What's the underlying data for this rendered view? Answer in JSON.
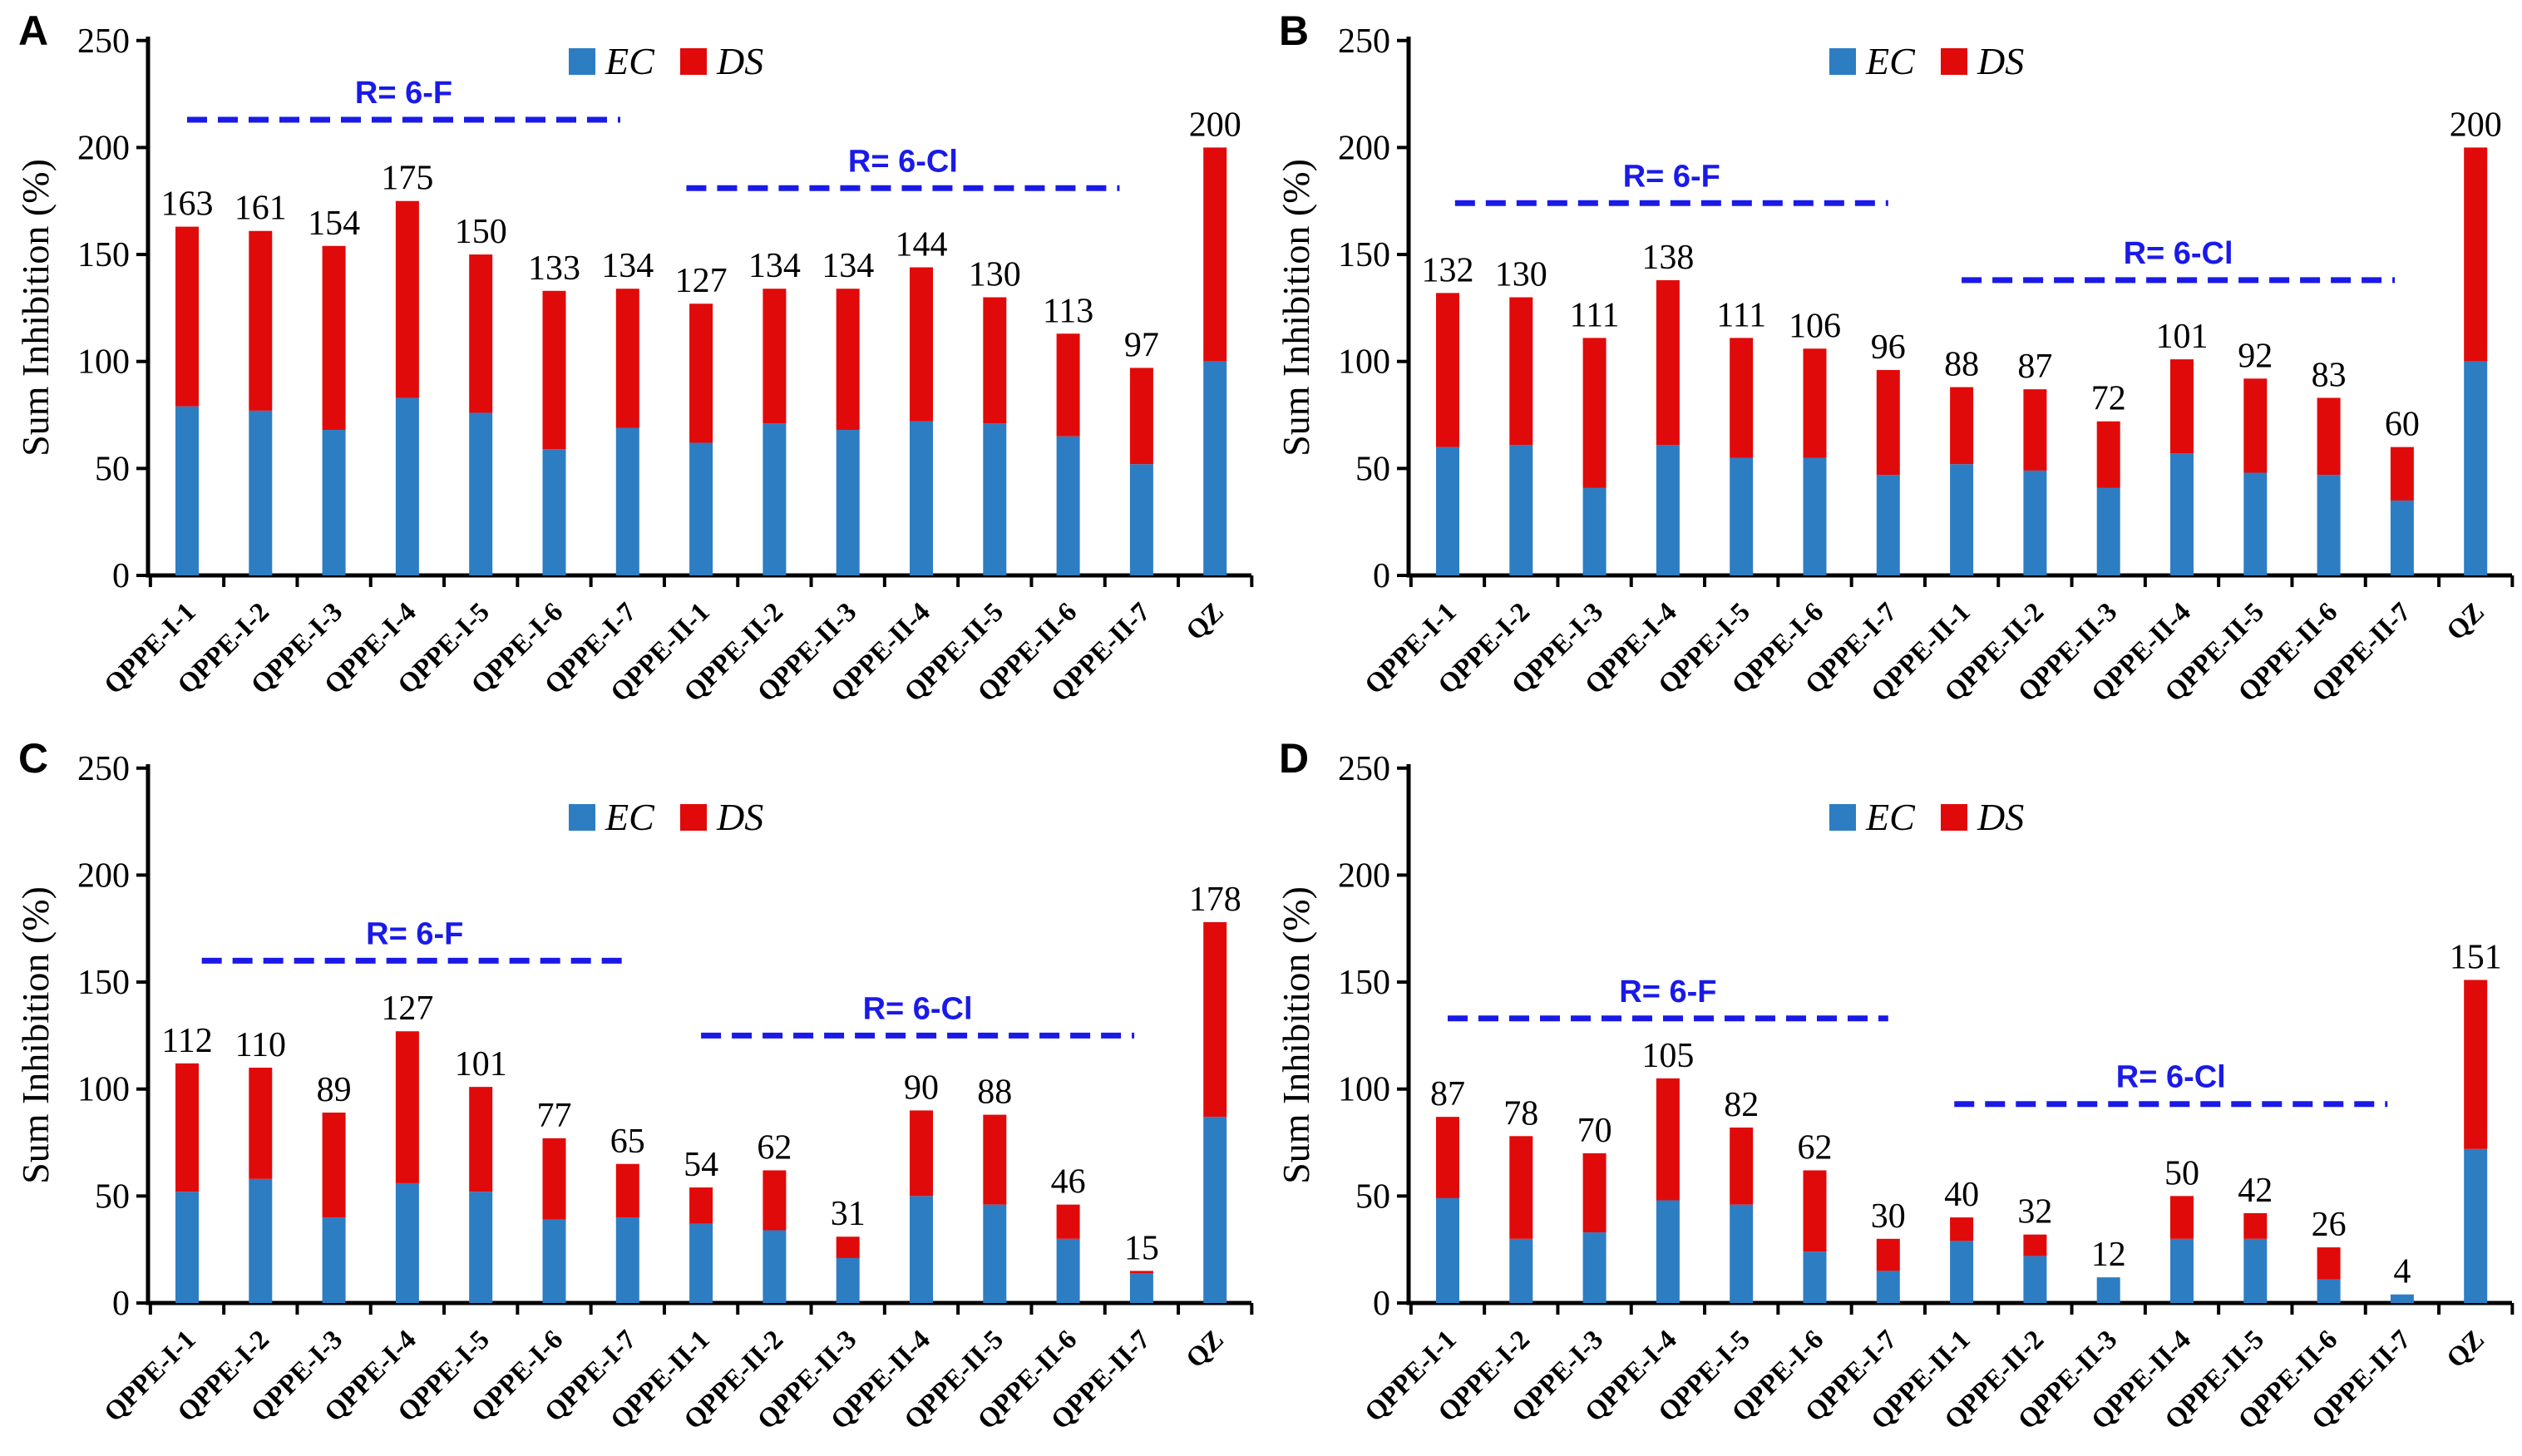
{
  "figure": {
    "background": "#ffffff",
    "colors": {
      "ec": "#2d7dc3",
      "ds": "#e10a0a",
      "annotation_blue": "#1a1ae8",
      "axis_black": "#000000",
      "label_black": "#000000"
    }
  },
  "chart_data": [
    {
      "type": "bar",
      "stacked": true,
      "panel_label": "A",
      "ylabel": "Sum Inhibition (%)",
      "ylim": [
        0,
        250
      ],
      "yticks": [
        0,
        50,
        100,
        150,
        200,
        250
      ],
      "grid": false,
      "legend_position": "top-center",
      "legend": [
        "EC",
        "DS"
      ],
      "categories": [
        "QPPE-I-1",
        "QPPE-I-2",
        "QPPE-I-3",
        "QPPE-I-4",
        "QPPE-I-5",
        "QPPE-I-6",
        "QPPE-I-7",
        "QPPE-II-1",
        "QPPE-II-2",
        "QPPE-II-3",
        "QPPE-II-4",
        "QPPE-II-5",
        "QPPE-II-6",
        "QPPE-II-7",
        "QZ"
      ],
      "series": [
        {
          "name": "EC",
          "color_key": "ec",
          "values": [
            79,
            77,
            68,
            83,
            76,
            59,
            69,
            62,
            71,
            68,
            72,
            71,
            65,
            52,
            100
          ]
        },
        {
          "name": "DS",
          "color_key": "ds",
          "values": [
            84,
            84,
            86,
            92,
            74,
            74,
            65,
            65,
            63,
            66,
            72,
            59,
            48,
            45,
            100
          ]
        }
      ],
      "totals": [
        163,
        161,
        154,
        175,
        150,
        133,
        134,
        127,
        134,
        134,
        144,
        130,
        113,
        97,
        200
      ],
      "annotations": [
        {
          "label": "R= 6-F",
          "y": 213,
          "x1": 0.0,
          "x2": 5.9
        },
        {
          "label": "R= 6-Cl",
          "y": 181,
          "x1": 6.8,
          "x2": 12.7
        }
      ]
    },
    {
      "type": "bar",
      "stacked": true,
      "panel_label": "B",
      "ylabel": "Sum Inhibition (%)",
      "ylim": [
        0,
        250
      ],
      "yticks": [
        0,
        50,
        100,
        150,
        200,
        250
      ],
      "grid": false,
      "legend_position": "top-center",
      "legend": [
        "EC",
        "DS"
      ],
      "categories": [
        "QPPE-I-1",
        "QPPE-I-2",
        "QPPE-I-3",
        "QPPE-I-4",
        "QPPE-I-5",
        "QPPE-I-6",
        "QPPE-I-7",
        "QPPE-II-1",
        "QPPE-II-2",
        "QPPE-II-3",
        "QPPE-II-4",
        "QPPE-II-5",
        "QPPE-II-6",
        "QPPE-II-7",
        "QZ"
      ],
      "series": [
        {
          "name": "EC",
          "color_key": "ec",
          "values": [
            60,
            61,
            41,
            61,
            55,
            55,
            47,
            52,
            49,
            41,
            57,
            48,
            47,
            35,
            100
          ]
        },
        {
          "name": "DS",
          "color_key": "ds",
          "values": [
            72,
            69,
            70,
            77,
            56,
            51,
            49,
            36,
            38,
            31,
            44,
            44,
            36,
            25,
            100
          ]
        }
      ],
      "totals": [
        132,
        130,
        111,
        138,
        111,
        106,
        96,
        88,
        87,
        72,
        101,
        92,
        83,
        60,
        200
      ],
      "annotations": [
        {
          "label": "R= 6-F",
          "y": 174,
          "x1": 0.1,
          "x2": 6.0
        },
        {
          "label": "R= 6-Cl",
          "y": 138,
          "x1": 7.0,
          "x2": 12.9
        }
      ]
    },
    {
      "type": "bar",
      "stacked": true,
      "panel_label": "C",
      "ylabel": "Sum Inhibition (%)",
      "ylim": [
        0,
        250
      ],
      "yticks": [
        0,
        50,
        100,
        150,
        200,
        250
      ],
      "grid": false,
      "legend_position": "top-center",
      "legend": [
        "EC",
        "DS"
      ],
      "categories": [
        "QPPE-I-1",
        "QPPE-I-2",
        "QPPE-I-3",
        "QPPE-I-4",
        "QPPE-I-5",
        "QPPE-I-6",
        "QPPE-I-7",
        "QPPE-II-1",
        "QPPE-II-2",
        "QPPE-II-3",
        "QPPE-II-4",
        "QPPE-II-5",
        "QPPE-II-6",
        "QPPE-II-7",
        "QZ"
      ],
      "series": [
        {
          "name": "EC",
          "color_key": "ec",
          "values": [
            52,
            58,
            40,
            56,
            52,
            39,
            40,
            37,
            34,
            21,
            50,
            46,
            30,
            14,
            87
          ]
        },
        {
          "name": "DS",
          "color_key": "ds",
          "values": [
            60,
            52,
            49,
            71,
            49,
            38,
            25,
            17,
            28,
            10,
            40,
            42,
            16,
            1,
            91
          ]
        }
      ],
      "totals": [
        112,
        110,
        89,
        127,
        101,
        77,
        65,
        54,
        62,
        31,
        90,
        88,
        46,
        15,
        178
      ],
      "annotations": [
        {
          "label": "R= 6-F",
          "y": 160,
          "x1": 0.2,
          "x2": 6.0
        },
        {
          "label": "R= 6-Cl",
          "y": 125,
          "x1": 7.0,
          "x2": 12.9
        }
      ]
    },
    {
      "type": "bar",
      "stacked": true,
      "panel_label": "D",
      "ylabel": "Sum Inhibition (%)",
      "ylim": [
        0,
        250
      ],
      "yticks": [
        0,
        50,
        100,
        150,
        200,
        250
      ],
      "grid": false,
      "legend_position": "top-center",
      "legend": [
        "EC",
        "DS"
      ],
      "categories": [
        "QPPE-I-1",
        "QPPE-I-2",
        "QPPE-I-3",
        "QPPE-I-4",
        "QPPE-I-5",
        "QPPE-I-6",
        "QPPE-I-7",
        "QPPE-II-1",
        "QPPE-II-2",
        "QPPE-II-3",
        "QPPE-II-4",
        "QPPE-II-5",
        "QPPE-II-6",
        "QPPE-II-7",
        "QZ"
      ],
      "series": [
        {
          "name": "EC",
          "color_key": "ec",
          "values": [
            49,
            30,
            33,
            48,
            46,
            24,
            15,
            29,
            22,
            12,
            30,
            30,
            11,
            4,
            72
          ]
        },
        {
          "name": "DS",
          "color_key": "ds",
          "values": [
            38,
            48,
            37,
            57,
            36,
            38,
            15,
            11,
            10,
            0,
            20,
            12,
            15,
            0,
            79
          ]
        }
      ],
      "totals": [
        87,
        78,
        70,
        105,
        82,
        62,
        30,
        40,
        32,
        12,
        50,
        42,
        26,
        4,
        151
      ],
      "annotations": [
        {
          "label": "R= 6-F",
          "y": 133,
          "x1": 0.0,
          "x2": 6.0
        },
        {
          "label": "R= 6-Cl",
          "y": 93,
          "x1": 6.9,
          "x2": 12.8
        }
      ]
    }
  ]
}
